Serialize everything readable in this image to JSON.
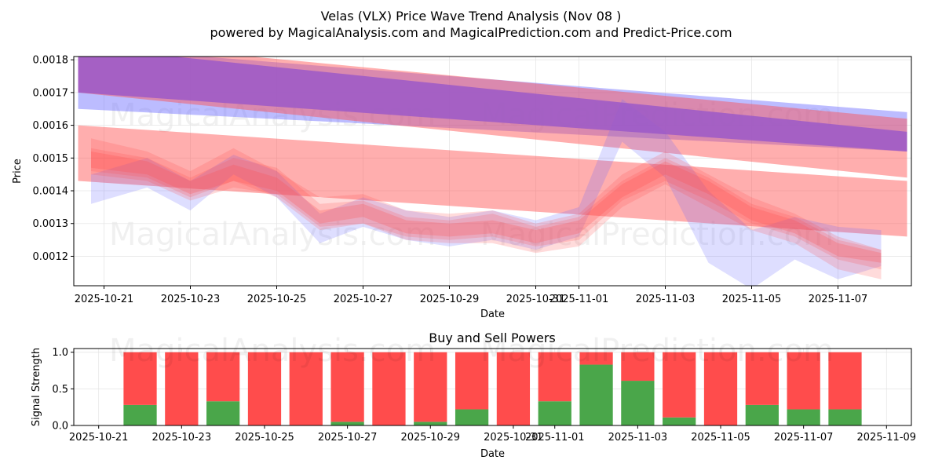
{
  "header": {
    "title": "Velas (VLX) Price Wave Trend Analysis (Nov 08 )",
    "subtitle": "powered by MagicalAnalysis.com and MagicalPrediction.com and Predict-Price.com"
  },
  "watermarks": [
    "MagicalAnalysis.com",
    "MagicalPrediction.com"
  ],
  "colors": {
    "blue": "#6b6bff",
    "red": "#ff4c4c",
    "purple": "#9b59c8",
    "green": "#4aa64a"
  },
  "chart_data": [
    {
      "type": "line",
      "name": "price-wave-chart",
      "xlabel": "Date",
      "ylabel": "Price",
      "xlim": [
        -0.7,
        18.7
      ],
      "ylim": [
        0.00111,
        0.00181
      ],
      "xtick_positions": [
        0,
        2,
        4,
        6,
        8,
        10,
        11,
        13,
        15,
        17
      ],
      "xtick_labels": [
        "2025-10-21",
        "2025-10-23",
        "2025-10-25",
        "2025-10-27",
        "2025-10-29",
        "2025-10-31",
        "2025-11-01",
        "2025-11-03",
        "2025-11-05",
        "2025-11-07"
      ],
      "yticks": [
        0.0012,
        0.0013,
        0.0014,
        0.0015,
        0.0016,
        0.0017,
        0.0018
      ],
      "ytick_labels": [
        "0.0012",
        "0.0013",
        "0.0014",
        "0.0015",
        "0.0016",
        "0.0017",
        "0.0018"
      ],
      "grid": true,
      "series": [
        {
          "name": "long-trend-blue-band",
          "color": "blue",
          "opacity": 0.45,
          "x": [
            -0.6,
            18.6
          ],
          "upper": [
            0.00184,
            0.00164
          ],
          "lower": [
            0.00165,
            0.00152
          ]
        },
        {
          "name": "long-trend-red-band",
          "color": "red",
          "opacity": 0.45,
          "x": [
            -0.6,
            18.6
          ],
          "upper": [
            0.00186,
            0.00162
          ],
          "lower": [
            0.0017,
            0.00144
          ]
        },
        {
          "name": "mid-trend-red-band",
          "color": "red",
          "opacity": 0.45,
          "x": [
            -0.6,
            18.6
          ],
          "upper": [
            0.0016,
            0.00143
          ],
          "lower": [
            0.00143,
            0.00126
          ]
        },
        {
          "name": "short-wave-blue",
          "color": "blue",
          "opacity": 0.22,
          "x": [
            -0.3,
            1,
            2,
            3,
            4,
            5,
            6,
            7,
            8,
            9,
            10,
            11,
            12,
            13,
            14,
            15,
            16,
            17,
            18
          ],
          "upper": [
            0.00145,
            0.0015,
            0.00143,
            0.00151,
            0.00146,
            0.00133,
            0.00138,
            0.00134,
            0.00132,
            0.00134,
            0.00131,
            0.00135,
            0.00168,
            0.00158,
            0.0014,
            0.00128,
            0.00132,
            0.00129,
            0.00128
          ],
          "lower": [
            0.00136,
            0.00141,
            0.00134,
            0.00145,
            0.00138,
            0.00124,
            0.00129,
            0.00125,
            0.00123,
            0.00125,
            0.00122,
            0.00126,
            0.00155,
            0.00144,
            0.00118,
            0.0011,
            0.00119,
            0.00113,
            0.00117
          ]
        },
        {
          "name": "short-wave-red-1",
          "color": "red",
          "opacity": 0.2,
          "x": [
            -0.3,
            1,
            2,
            3,
            4,
            5,
            6,
            7,
            8,
            9,
            10,
            11,
            12,
            13,
            14,
            15,
            16,
            17,
            18
          ],
          "upper": [
            0.00156,
            0.00152,
            0.00146,
            0.00153,
            0.00146,
            0.00138,
            0.00139,
            0.00134,
            0.00133,
            0.00134,
            0.0013,
            0.00133,
            0.00145,
            0.00152,
            0.00145,
            0.00138,
            0.00133,
            0.00126,
            0.00122
          ],
          "lower": [
            0.00146,
            0.00144,
            0.00138,
            0.00143,
            0.00138,
            0.00128,
            0.0013,
            0.00125,
            0.00124,
            0.00124,
            0.00121,
            0.00123,
            0.00135,
            0.00142,
            0.00135,
            0.00128,
            0.00124,
            0.00116,
            0.00113
          ]
        },
        {
          "name": "short-wave-red-2",
          "color": "red",
          "opacity": 0.2,
          "x": [
            -0.3,
            1,
            2,
            3,
            4,
            5,
            6,
            7,
            8,
            9,
            10,
            11,
            12,
            13,
            14,
            15,
            16,
            17,
            18
          ],
          "upper": [
            0.00153,
            0.0015,
            0.00144,
            0.0015,
            0.00147,
            0.00136,
            0.00137,
            0.00132,
            0.00131,
            0.00133,
            0.00129,
            0.00132,
            0.00143,
            0.0015,
            0.00144,
            0.00136,
            0.00132,
            0.00125,
            0.00122
          ],
          "lower": [
            0.00145,
            0.00143,
            0.00137,
            0.00141,
            0.00139,
            0.00129,
            0.0013,
            0.00126,
            0.00125,
            0.00126,
            0.00123,
            0.00125,
            0.00137,
            0.00143,
            0.00137,
            0.0013,
            0.00126,
            0.00119,
            0.00116
          ]
        },
        {
          "name": "short-wave-red-3",
          "color": "red",
          "opacity": 0.25,
          "x": [
            -0.3,
            1,
            2,
            3,
            4,
            5,
            6,
            7,
            8,
            9,
            10,
            11,
            12,
            13,
            14,
            15,
            16,
            17,
            18
          ],
          "upper": [
            0.00152,
            0.00149,
            0.00143,
            0.00148,
            0.00144,
            0.00134,
            0.00136,
            0.00131,
            0.0013,
            0.00131,
            0.00128,
            0.00131,
            0.00142,
            0.00149,
            0.00143,
            0.00135,
            0.00131,
            0.00124,
            0.00121
          ],
          "lower": [
            0.00147,
            0.00145,
            0.00139,
            0.00143,
            0.0014,
            0.0013,
            0.00132,
            0.00127,
            0.00126,
            0.00127,
            0.00124,
            0.00127,
            0.00138,
            0.00145,
            0.00139,
            0.00131,
            0.00127,
            0.0012,
            0.00118
          ]
        },
        {
          "name": "long-trend-purple-band",
          "color": "purple",
          "opacity": 0.85,
          "x": [
            -0.6,
            18.6
          ],
          "upper": [
            0.00184,
            0.00158
          ],
          "lower": [
            0.0017,
            0.00152
          ]
        }
      ]
    },
    {
      "type": "bar",
      "name": "buy-sell-powers-chart",
      "title": "Buy and Sell Powers",
      "xlabel": "Date",
      "ylabel": "Signal Strength",
      "xlim": [
        -0.6,
        19.6
      ],
      "ylim": [
        0,
        1.05
      ],
      "yticks": [
        0.0,
        0.5,
        1.0
      ],
      "ytick_labels": [
        "0.0",
        "0.5",
        "1.0"
      ],
      "xtick_positions": [
        0,
        2,
        4,
        6,
        8,
        10,
        11,
        13,
        15,
        17,
        19
      ],
      "xtick_labels": [
        "2025-10-21",
        "2025-10-23",
        "2025-10-25",
        "2025-10-27",
        "2025-10-29",
        "2025-10-31",
        "2025-11-01",
        "2025-11-03",
        "2025-11-05",
        "2025-11-07",
        "2025-11-09"
      ],
      "x": [
        1,
        2,
        3,
        4,
        5,
        6,
        7,
        8,
        9,
        10,
        11,
        12,
        13,
        14,
        15,
        16,
        17,
        18
      ],
      "series": [
        {
          "name": "Buy",
          "color": "green",
          "values": [
            0.28,
            0,
            0.33,
            0,
            0,
            0.05,
            0,
            0.05,
            0.22,
            0,
            0.33,
            0.83,
            0.61,
            0.11,
            0,
            0.28,
            0.22,
            0.22
          ]
        },
        {
          "name": "Sell",
          "color": "red",
          "values": [
            0.72,
            1,
            0.67,
            1,
            1,
            0.95,
            1,
            0.95,
            0.78,
            1,
            0.67,
            0.17,
            0.39,
            0.89,
            1,
            0.72,
            0.78,
            0.78
          ]
        }
      ],
      "grid": true
    }
  ]
}
